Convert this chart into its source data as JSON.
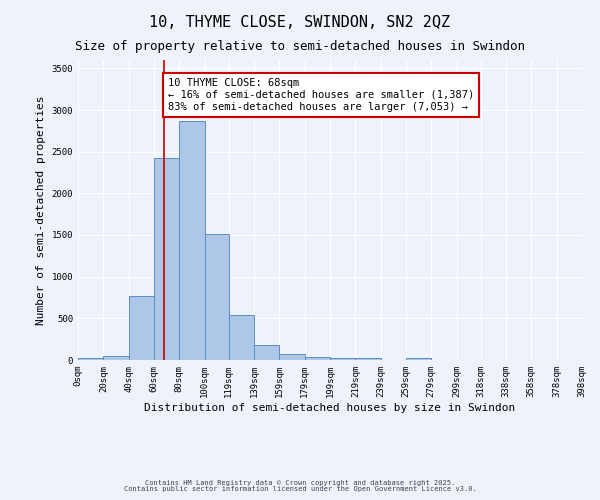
{
  "title": "10, THYME CLOSE, SWINDON, SN2 2QZ",
  "subtitle": "Size of property relative to semi-detached houses in Swindon",
  "xlabel": "Distribution of semi-detached houses by size in Swindon",
  "ylabel": "Number of semi-detached properties",
  "bar_edges": [
    0,
    20,
    40,
    60,
    80,
    100,
    119,
    139,
    159,
    179,
    199,
    219,
    239,
    259,
    279,
    299,
    318,
    338,
    358,
    378,
    398
  ],
  "bar_heights": [
    20,
    50,
    770,
    2430,
    2870,
    1510,
    540,
    185,
    70,
    35,
    20,
    20,
    0,
    20,
    0,
    0,
    0,
    0,
    0,
    0
  ],
  "bar_color": "#aec6e8",
  "bar_edge_color": "#5a8fc0",
  "property_size": 68,
  "property_line_color": "#cc0000",
  "annotation_text": "10 THYME CLOSE: 68sqm\n← 16% of semi-detached houses are smaller (1,387)\n83% of semi-detached houses are larger (7,053) →",
  "annotation_box_color": "#ffffff",
  "annotation_border_color": "#cc0000",
  "ylim": [
    0,
    3600
  ],
  "xlim": [
    0,
    398
  ],
  "yticks": [
    0,
    500,
    1000,
    1500,
    2000,
    2500,
    3000,
    3500
  ],
  "xtick_labels": [
    "0sqm",
    "20sqm",
    "40sqm",
    "60sqm",
    "80sqm",
    "100sqm",
    "119sqm",
    "139sqm",
    "159sqm",
    "179sqm",
    "199sqm",
    "219sqm",
    "239sqm",
    "259sqm",
    "279sqm",
    "299sqm",
    "318sqm",
    "338sqm",
    "358sqm",
    "378sqm",
    "398sqm"
  ],
  "xtick_positions": [
    0,
    20,
    40,
    60,
    80,
    100,
    119,
    139,
    159,
    179,
    199,
    219,
    239,
    259,
    279,
    299,
    318,
    338,
    358,
    378,
    398
  ],
  "footer_line1": "Contains HM Land Registry data © Crown copyright and database right 2025.",
  "footer_line2": "Contains public sector information licensed under the Open Government Licence v3.0.",
  "bg_color": "#eef2fa",
  "grid_color": "#ffffff",
  "title_fontsize": 11,
  "subtitle_fontsize": 9,
  "annotation_fontsize": 7.5,
  "tick_fontsize": 6.5,
  "ylabel_fontsize": 8,
  "xlabel_fontsize": 8
}
